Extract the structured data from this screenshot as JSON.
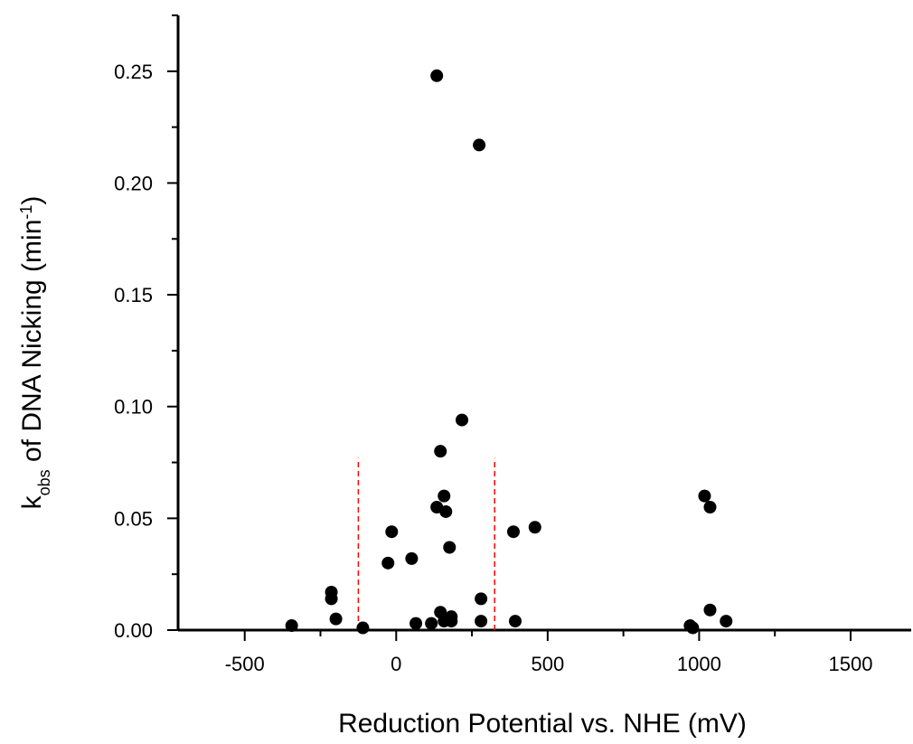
{
  "chart_data": {
    "type": "scatter",
    "xlabel": "Reduction Potential vs. NHE (mV)",
    "ylabel": [
      "k",
      "obs",
      " of DNA Nicking (min",
      "-1",
      ")"
    ],
    "x": [
      -345,
      -214,
      -214,
      -199,
      -110,
      -27,
      -15,
      51,
      65,
      116,
      134,
      134,
      146,
      146,
      158,
      164,
      158,
      176,
      182,
      182,
      217,
      274,
      280,
      280,
      387,
      393,
      458,
      970,
      979,
      1018,
      1036,
      1036,
      1089
    ],
    "y": [
      0.002,
      0.017,
      0.014,
      0.005,
      0.001,
      0.03,
      0.044,
      0.032,
      0.003,
      0.003,
      0.248,
      0.055,
      0.08,
      0.008,
      0.06,
      0.053,
      0.004,
      0.037,
      0.006,
      0.004,
      0.094,
      0.217,
      0.014,
      0.004,
      0.044,
      0.004,
      0.046,
      0.002,
      0.001,
      0.06,
      0.055,
      0.009,
      0.004
    ],
    "color": "#000000",
    "xlim": [
      -720,
      1700
    ],
    "xticks": [
      -500,
      0,
      500,
      1000,
      1500
    ],
    "ylim": [
      0,
      0.275
    ],
    "yticks": [
      {
        "value": 0,
        "label": "0.00"
      },
      0.05,
      {
        "value": 0.1,
        "label": "0.10"
      },
      0.15,
      {
        "value": 0.2,
        "label": "0.20"
      },
      0.25
    ],
    "reference_lines": {
      "x": [
        -125,
        325
      ],
      "ymax": 0.077,
      "color": "#ff0000"
    }
  }
}
